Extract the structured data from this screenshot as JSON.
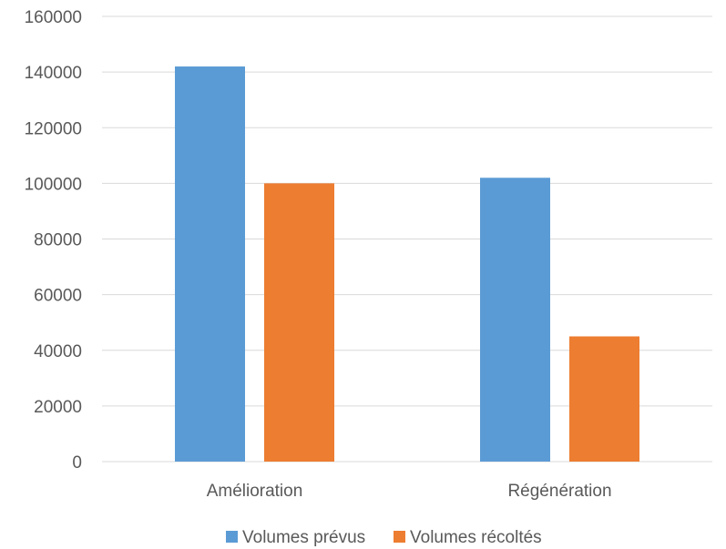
{
  "chart_data": {
    "type": "bar",
    "title": "",
    "xlabel": "",
    "ylabel": "",
    "categories": [
      "Amélioration",
      "Régénération"
    ],
    "series": [
      {
        "name": "Volumes prévus",
        "values": [
          142000,
          102000
        ],
        "color": "#5b9bd5"
      },
      {
        "name": "Volumes récoltés",
        "values": [
          100000,
          45000
        ],
        "color": "#ed7d31"
      }
    ],
    "ylim": [
      0,
      160000
    ],
    "yticks": [
      0,
      20000,
      40000,
      60000,
      80000,
      100000,
      120000,
      140000,
      160000
    ],
    "grid": true,
    "legend_position": "bottom"
  }
}
